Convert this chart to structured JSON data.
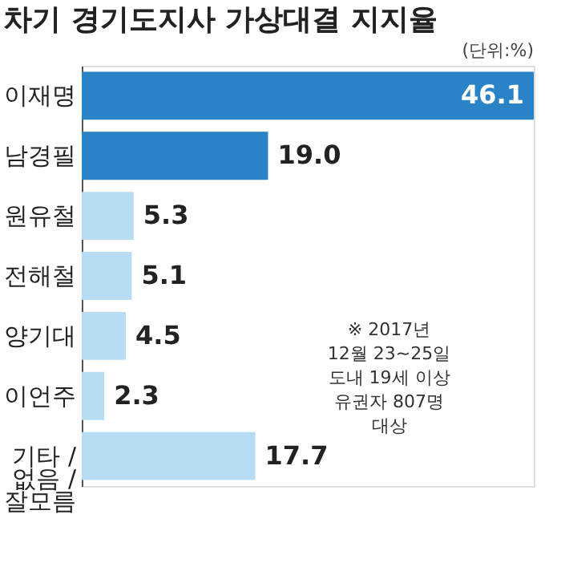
{
  "chart_data": {
    "type": "bar",
    "orientation": "horizontal",
    "title": "차기 경기도지사 가상대결 지지율",
    "categories": [
      "이재명",
      "남경필",
      "원유철",
      "전해철",
      "양기대",
      "이언주",
      "기타 / 없음 / 잘모름"
    ],
    "values": [
      46.1,
      19.0,
      5.3,
      5.1,
      4.5,
      2.3,
      17.7
    ],
    "colors": [
      "#2a83c6",
      "#2a83c6",
      "#b8dcf3",
      "#b8dcf3",
      "#b8dcf3",
      "#b8dcf3",
      "#b8dcf3"
    ],
    "value_labels": [
      "46.1",
      "19.0",
      "5.3",
      "5.1",
      "4.5",
      "2.3",
      "17.7"
    ],
    "annotations": [
      "(단위:%)",
      "※ 2017년\n12월 23~25일\n도내 19세 이상\n유권자 807명\n대상"
    ]
  }
}
